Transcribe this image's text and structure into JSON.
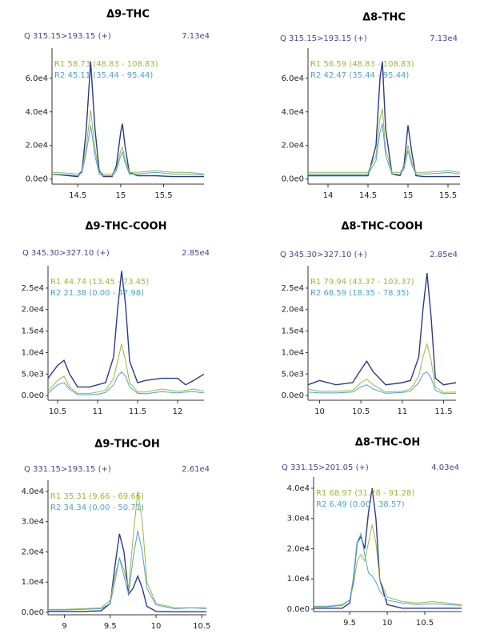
{
  "chart_data": [
    {
      "type": "line",
      "title": "Δ9-THC",
      "header": "Q 315.15>193.15 (+)",
      "header_value": "7.13e4",
      "x": [
        14.2,
        14.4,
        14.5,
        14.55,
        14.6,
        14.65,
        14.7,
        14.75,
        14.8,
        14.9,
        14.95,
        15.0,
        15.02,
        15.05,
        15.1,
        15.2,
        15.4,
        15.6,
        15.8,
        15.97
      ],
      "xlim": [
        14.2,
        15.97
      ],
      "xticks": [
        14.5,
        15.0,
        15.5
      ],
      "ylim": [
        -3000,
        78000
      ],
      "yticks": [
        {
          "value": 0,
          "label": "0.0e0"
        },
        {
          "value": 20000,
          "label": "2.0e4"
        },
        {
          "value": 40000,
          "label": "4.0e4"
        },
        {
          "value": 60000,
          "label": "6.0e4"
        }
      ],
      "series": [
        {
          "color": "#2b3a8c",
          "values": [
            3000,
            2000,
            1500,
            5000,
            30000,
            70000,
            30000,
            5000,
            1500,
            1500,
            8000,
            28000,
            33000,
            20000,
            4000,
            2000,
            2000,
            1500,
            1500,
            1500
          ]
        },
        {
          "name": "R1 58.73 (48.83 - 108.83)",
          "color": "#9aba3a",
          "values": [
            4000,
            3500,
            3000,
            5000,
            20000,
            41000,
            18000,
            4000,
            3000,
            3000,
            6000,
            17000,
            19000,
            12000,
            4000,
            4000,
            5000,
            4000,
            4000,
            3000
          ]
        },
        {
          "name": "R2 45.11 (35.44 - 95.44)",
          "color": "#4aa3df",
          "values": [
            3000,
            2500,
            2000,
            4000,
            16000,
            32000,
            14000,
            3000,
            2000,
            2000,
            5000,
            14000,
            16000,
            10000,
            3000,
            3000,
            4000,
            3000,
            3000,
            2500
          ]
        }
      ]
    },
    {
      "type": "line",
      "title": "Δ8-THC",
      "header": "Q 315.15>193.15 (+)",
      "header_value": "7.13e4",
      "x": [
        13.75,
        14.0,
        14.3,
        14.5,
        14.6,
        14.65,
        14.68,
        14.72,
        14.8,
        14.9,
        14.95,
        15.0,
        15.05,
        15.1,
        15.2,
        15.4,
        15.5,
        15.65
      ],
      "xlim": [
        13.75,
        15.65
      ],
      "xticks": [
        14.0,
        14.5,
        15.0,
        15.5
      ],
      "ylim": [
        -3000,
        78000
      ],
      "yticks": [
        {
          "value": 0,
          "label": "0.0e0"
        },
        {
          "value": 20000,
          "label": "2.0e4"
        },
        {
          "value": 40000,
          "label": "4.0e4"
        },
        {
          "value": 60000,
          "label": "6.0e4"
        }
      ],
      "series": [
        {
          "color": "#2b3a8c",
          "values": [
            2000,
            2000,
            2000,
            2000,
            20000,
            60000,
            70000,
            30000,
            3000,
            2000,
            8000,
            32000,
            15000,
            2000,
            1500,
            1500,
            1500,
            1500
          ]
        },
        {
          "name": "R1 56.59 (48.83 - 108.83)",
          "color": "#9aba3a",
          "values": [
            4000,
            4000,
            4000,
            4000,
            14000,
            36000,
            42000,
            18000,
            4000,
            4000,
            7000,
            20000,
            10000,
            4000,
            4000,
            4500,
            5000,
            4000
          ]
        },
        {
          "name": "R2 42.47 (35.44 - 95.44)",
          "color": "#4aa3df",
          "values": [
            3000,
            3000,
            3000,
            3000,
            11000,
            28000,
            33000,
            14000,
            3000,
            3000,
            6000,
            17000,
            8000,
            3000,
            3000,
            3500,
            4000,
            3000
          ]
        }
      ]
    },
    {
      "type": "line",
      "title": "Δ9-THC-COOH",
      "header": "Q 345.30>327.10 (+)",
      "header_value": "2.85e4",
      "x": [
        10.38,
        10.5,
        10.58,
        10.65,
        10.75,
        10.9,
        11.0,
        11.1,
        11.2,
        11.25,
        11.3,
        11.35,
        11.4,
        11.5,
        11.6,
        11.8,
        12.0,
        12.1,
        12.2,
        12.33
      ],
      "xlim": [
        10.38,
        12.33
      ],
      "xticks": [
        10.5,
        11.0,
        11.5,
        12.0
      ],
      "ylim": [
        -1100,
        30200
      ],
      "yticks": [
        {
          "value": 0,
          "label": "0.0e0"
        },
        {
          "value": 5000,
          "label": "5.0e3"
        },
        {
          "value": 10000,
          "label": "1.0e4"
        },
        {
          "value": 15000,
          "label": "1.5e4"
        },
        {
          "value": 20000,
          "label": "2.0e4"
        },
        {
          "value": 25000,
          "label": "2.5e4"
        }
      ],
      "series": [
        {
          "color": "#2b3a8c",
          "values": [
            4000,
            7000,
            8200,
            5000,
            2000,
            2000,
            2500,
            3000,
            9000,
            20000,
            29000,
            21000,
            8000,
            3000,
            3500,
            4000,
            4000,
            2500,
            3500,
            5000
          ]
        },
        {
          "name": "R1 44.74 (13.45 - 73.45)",
          "color": "#9aba3a",
          "values": [
            1000,
            3500,
            4500,
            2000,
            500,
            500,
            800,
            1200,
            4000,
            8000,
            12000,
            8000,
            3000,
            800,
            800,
            1500,
            1000,
            1200,
            1500,
            1000
          ]
        },
        {
          "name": "R2 21.38 (0.00 - 47.98)",
          "color": "#4aa3df",
          "values": [
            500,
            2500,
            3000,
            1500,
            200,
            200,
            300,
            700,
            2500,
            4500,
            5500,
            4500,
            2000,
            500,
            400,
            900,
            600,
            800,
            900,
            600
          ]
        }
      ]
    },
    {
      "type": "line",
      "title": "Δ8-THC-COOH",
      "header": "Q 345.30>327.10 (+)",
      "header_value": "2.85e4",
      "x": [
        9.86,
        10.0,
        10.2,
        10.4,
        10.5,
        10.57,
        10.65,
        10.8,
        11.0,
        11.1,
        11.2,
        11.25,
        11.3,
        11.35,
        11.4,
        11.5,
        11.65
      ],
      "xlim": [
        9.86,
        11.65
      ],
      "xticks": [
        10.0,
        10.5,
        11.0,
        11.5
      ],
      "ylim": [
        -1100,
        30200
      ],
      "yticks": [
        {
          "value": 0,
          "label": "0.0e0"
        },
        {
          "value": 5000,
          "label": "5.0e3"
        },
        {
          "value": 10000,
          "label": "1.0e4"
        },
        {
          "value": 15000,
          "label": "1.5e4"
        },
        {
          "value": 20000,
          "label": "2.0e4"
        },
        {
          "value": 25000,
          "label": "2.5e4"
        }
      ],
      "series": [
        {
          "color": "#2b3a8c",
          "values": [
            2500,
            3500,
            2500,
            3000,
            6000,
            8000,
            5500,
            2500,
            3000,
            3500,
            9000,
            20000,
            28500,
            18000,
            4000,
            2500,
            3000
          ]
        },
        {
          "name": "R1 79.94 (43.37 - 103.37)",
          "color": "#9aba3a",
          "values": [
            1500,
            1000,
            1000,
            1200,
            3000,
            3800,
            2500,
            800,
            1000,
            1500,
            4500,
            9000,
            12000,
            8000,
            2000,
            700,
            800
          ]
        },
        {
          "name": "R2 68.59 (18.35 - 78.35)",
          "color": "#4aa3df",
          "values": [
            800,
            600,
            600,
            800,
            2000,
            2500,
            1500,
            500,
            700,
            1000,
            3000,
            5000,
            5500,
            4000,
            1200,
            400,
            500
          ]
        }
      ]
    },
    {
      "type": "line",
      "title": "Δ9-THC-OH",
      "header": "Q 331.15>193.15 (+)",
      "header_value": "2.61e4",
      "x": [
        8.82,
        9.0,
        9.2,
        9.4,
        9.5,
        9.55,
        9.6,
        9.65,
        9.7,
        9.75,
        9.8,
        9.85,
        9.9,
        10.0,
        10.2,
        10.4,
        10.55
      ],
      "xlim": [
        8.82,
        10.55
      ],
      "xticks": [
        9.0,
        9.5,
        10.0,
        10.5
      ],
      "ylim": [
        -800,
        43700
      ],
      "yticks": [
        {
          "value": 0,
          "label": "0.0e0"
        },
        {
          "value": 10000,
          "label": "1.0e4"
        },
        {
          "value": 20000,
          "label": "2.0e4"
        },
        {
          "value": 30000,
          "label": "3.0e4"
        },
        {
          "value": 40000,
          "label": "4.0e4"
        }
      ],
      "series": [
        {
          "color": "#2b3a8c",
          "values": [
            300,
            300,
            300,
            500,
            3000,
            15000,
            26000,
            20000,
            6000,
            8000,
            12000,
            8000,
            2000,
            300,
            200,
            200,
            200
          ]
        },
        {
          "name": "R1 35.31 (9.66 - 69.66)",
          "color": "#9aba3a",
          "values": [
            1000,
            1000,
            1200,
            1500,
            4000,
            12000,
            18000,
            14000,
            8000,
            25000,
            40000,
            30000,
            10000,
            3000,
            1500,
            1500,
            1500
          ]
        },
        {
          "name": "R2 34.34 (0.00 - 50.71)",
          "color": "#4aa3df",
          "values": [
            800,
            800,
            1000,
            1200,
            3000,
            10000,
            18000,
            12000,
            6000,
            18000,
            27000,
            20000,
            8000,
            2500,
            1200,
            1500,
            1200
          ]
        }
      ]
    },
    {
      "type": "line",
      "title": "Δ8-THC-OH",
      "header": "Q 331.15>201.05 (+)",
      "header_value": "4.03e4",
      "x": [
        9.02,
        9.2,
        9.4,
        9.5,
        9.55,
        9.6,
        9.65,
        9.7,
        9.75,
        9.8,
        9.85,
        9.9,
        10.0,
        10.2,
        10.4,
        10.6,
        10.8,
        10.99
      ],
      "xlim": [
        9.02,
        10.99
      ],
      "xticks": [
        9.5,
        10.0,
        10.5
      ],
      "ylim": [
        -800,
        43700
      ],
      "yticks": [
        {
          "value": 0,
          "label": "0.0e0"
        },
        {
          "value": 10000,
          "label": "1.0e4"
        },
        {
          "value": 20000,
          "label": "2.0e4"
        },
        {
          "value": 30000,
          "label": "3.0e4"
        },
        {
          "value": 40000,
          "label": "4.0e4"
        }
      ],
      "series": [
        {
          "color": "#2b3a8c",
          "values": [
            300,
            300,
            300,
            2000,
            10000,
            22000,
            24000,
            20000,
            32000,
            40000,
            30000,
            10000,
            1500,
            300,
            300,
            300,
            300,
            300
          ]
        },
        {
          "name": "R1 68.97 (31.28 - 91.28)",
          "color": "#9aba3a",
          "values": [
            1000,
            1000,
            1500,
            3000,
            8000,
            16000,
            18000,
            16000,
            22000,
            28000,
            22000,
            10000,
            4000,
            2500,
            2000,
            2500,
            2000,
            1500
          ]
        },
        {
          "name": "R2 6.49 (0.00 - 38.57)",
          "color": "#4aa3df",
          "values": [
            800,
            800,
            1200,
            3000,
            10000,
            22000,
            25000,
            18000,
            12000,
            11000,
            9000,
            6000,
            3000,
            2000,
            1500,
            1800,
            1500,
            1200
          ]
        }
      ]
    }
  ]
}
